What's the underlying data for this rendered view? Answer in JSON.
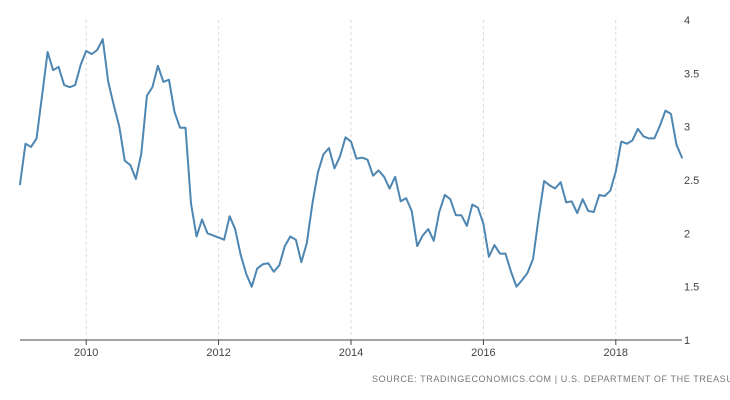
{
  "source_text": "SOURCE: TRADINGECONOMICS.COM | U.S. DEPARTMENT OF THE TREASURY",
  "colors": {
    "line": "#4e86b2",
    "grid": "#d9d9d9",
    "axis": "#444444",
    "text": "#444444",
    "source": "#777777"
  },
  "chart_data": {
    "type": "line",
    "title": "",
    "xlabel": "",
    "ylabel": "",
    "grid": "vertical-dashed",
    "y_axis_position": "right",
    "xlim": [
      2009.0,
      2019.0
    ],
    "ylim": [
      1,
      4
    ],
    "x_ticks": [
      2010,
      2012,
      2014,
      2016,
      2018
    ],
    "x_tick_labels": [
      "2010",
      "2012",
      "2014",
      "2016",
      "2018"
    ],
    "y_ticks": [
      1,
      1.5,
      2,
      2.5,
      3,
      3.5,
      4
    ],
    "y_tick_labels": [
      "1",
      "1.5",
      "2",
      "2.5",
      "3",
      "3.5",
      "4"
    ],
    "series": [
      {
        "x": [
          2009.0,
          2009.083,
          2009.167,
          2009.25,
          2009.333,
          2009.417,
          2009.5,
          2009.583,
          2009.667,
          2009.75,
          2009.833,
          2009.917,
          2010.0,
          2010.083,
          2010.167,
          2010.25,
          2010.333,
          2010.417,
          2010.5,
          2010.583,
          2010.667,
          2010.75,
          2010.833,
          2010.917,
          2011.0,
          2011.083,
          2011.167,
          2011.25,
          2011.333,
          2011.417,
          2011.5,
          2011.583,
          2011.667,
          2011.75,
          2011.833,
          2011.917,
          2012.0,
          2012.083,
          2012.167,
          2012.25,
          2012.333,
          2012.417,
          2012.5,
          2012.583,
          2012.667,
          2012.75,
          2012.833,
          2012.917,
          2013.0,
          2013.083,
          2013.167,
          2013.25,
          2013.333,
          2013.417,
          2013.5,
          2013.583,
          2013.667,
          2013.75,
          2013.833,
          2013.917,
          2014.0,
          2014.083,
          2014.167,
          2014.25,
          2014.333,
          2014.417,
          2014.5,
          2014.583,
          2014.667,
          2014.75,
          2014.833,
          2014.917,
          2015.0,
          2015.083,
          2015.167,
          2015.25,
          2015.333,
          2015.417,
          2015.5,
          2015.583,
          2015.667,
          2015.75,
          2015.833,
          2015.917,
          2016.0,
          2016.083,
          2016.167,
          2016.25,
          2016.333,
          2016.417,
          2016.5,
          2016.583,
          2016.667,
          2016.75,
          2016.833,
          2016.917,
          2017.0,
          2017.083,
          2017.167,
          2017.25,
          2017.333,
          2017.417,
          2017.5,
          2017.583,
          2017.667,
          2017.75,
          2017.833,
          2017.917,
          2018.0,
          2018.083,
          2018.167,
          2018.25,
          2018.333,
          2018.417,
          2018.5,
          2018.583,
          2018.667,
          2018.75,
          2018.833,
          2018.917
        ],
        "values": [
          2.46,
          2.84,
          2.81,
          2.89,
          3.29,
          3.7,
          3.53,
          3.56,
          3.39,
          3.37,
          3.39,
          3.58,
          3.71,
          3.68,
          3.72,
          3.82,
          3.42,
          3.2,
          3.0,
          2.68,
          2.64,
          2.51,
          2.75,
          3.29,
          3.37,
          3.57,
          3.42,
          3.44,
          3.14,
          2.99,
          2.99,
          2.28,
          1.97,
          2.13,
          2.0,
          1.98,
          1.96,
          1.94,
          2.16,
          2.04,
          1.8,
          1.62,
          1.5,
          1.67,
          1.71,
          1.72,
          1.64,
          1.7,
          1.88,
          1.97,
          1.94,
          1.73,
          1.91,
          2.28,
          2.57,
          2.74,
          2.8,
          2.61,
          2.72,
          2.9,
          2.86,
          2.7,
          2.71,
          2.69,
          2.54,
          2.59,
          2.53,
          2.42,
          2.53,
          2.3,
          2.33,
          2.21,
          1.88,
          1.98,
          2.04,
          1.93,
          2.2,
          2.36,
          2.32,
          2.17,
          2.17,
          2.07,
          2.27,
          2.24,
          2.09,
          1.78,
          1.89,
          1.81,
          1.81,
          1.64,
          1.5,
          1.56,
          1.63,
          1.76,
          2.14,
          2.49,
          2.45,
          2.42,
          2.48,
          2.29,
          2.3,
          2.19,
          2.32,
          2.21,
          2.2,
          2.36,
          2.35,
          2.4,
          2.58,
          2.86,
          2.84,
          2.87,
          2.98,
          2.91,
          2.89,
          2.89,
          3.01,
          3.15,
          3.12,
          2.83
        ]
      },
      {
        "x": [
          2018.917,
          2019.0
        ],
        "values": [
          2.83,
          2.71
        ]
      }
    ]
  }
}
